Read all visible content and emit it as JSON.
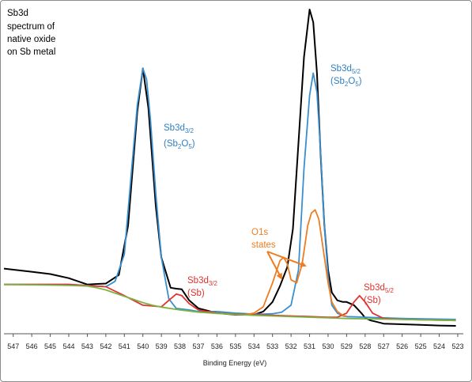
{
  "chart_data": {
    "type": "line",
    "title_lines": [
      "Sb3d",
      "spectrum of",
      "native oxide",
      "on  Sb metal"
    ],
    "xlabel": "Binding Energy (eV)",
    "ylabel": "",
    "x_reversed": true,
    "xlim": [
      547.5,
      522.7
    ],
    "ylim": [
      0,
      100
    ],
    "x_ticks": [
      "547",
      "546",
      "545",
      "544",
      "543",
      "542",
      "541",
      "540",
      "539",
      "538",
      "537",
      "536",
      "535",
      "534",
      "533",
      "532",
      "531",
      "530",
      "529",
      "528",
      "527",
      "526",
      "525",
      "524",
      "523"
    ],
    "grid": false,
    "annotations": {
      "sb3d32_ox": {
        "main": "Sb3d",
        "sub": "3/2",
        "formula": "(Sb",
        "sub2": "2",
        "mid": "O",
        "sub3": "5",
        "end": ")"
      },
      "sb3d52_ox": {
        "main": "Sb3d",
        "sub": "5/2",
        "formula": "(Sb",
        "sub2": "2",
        "mid": "O",
        "sub3": "5",
        "end": ")"
      },
      "sb3d32_m": {
        "main": "Sb3d",
        "sub": "3/2",
        "formula": "(Sb)"
      },
      "sb3d52_m": {
        "main": "Sb3d",
        "sub": "5/2",
        "formula": "(Sb)"
      },
      "o1s": {
        "line1": "O1s",
        "line2": "states"
      }
    },
    "series": [
      {
        "color": "#000000",
        "x": [
          547.5,
          546,
          545,
          544,
          543,
          542,
          541.3,
          540.8,
          540.3,
          540.0,
          539.7,
          539.3,
          539.0,
          538.5,
          538.2,
          537.9,
          537.5,
          537.0,
          536,
          535,
          534,
          533.5,
          533.0,
          532.6,
          532.2,
          531.9,
          531.6,
          531.3,
          531.0,
          530.8,
          530.6,
          530.4,
          530.2,
          530.0,
          529.8,
          529.5,
          529.2,
          529.0,
          528.6,
          528.2,
          528.0,
          527.7,
          527.4,
          527,
          526,
          525,
          524,
          523.1
        ],
        "y": [
          18.5,
          17.5,
          16.8,
          15.5,
          13.5,
          13.8,
          16.5,
          32,
          68,
          81.5,
          69,
          38,
          22,
          12.5,
          12.2,
          12,
          8.5,
          6,
          4.5,
          4.0,
          4.0,
          5.0,
          8.0,
          13,
          19,
          31,
          58,
          85,
          100,
          96,
          80,
          54,
          32,
          18,
          11,
          8.5,
          8,
          8,
          7,
          4.5,
          3,
          2.2,
          1.8,
          1.2,
          1,
          0.8,
          0.6,
          0.5
        ]
      },
      {
        "color": "#3a8fcf",
        "x": [
          547.5,
          546,
          545,
          544,
          543,
          542,
          541.5,
          541.0,
          540.6,
          540.3,
          540.0,
          539.8,
          539.6,
          539.3,
          539.0,
          538.6,
          538.2,
          537.5,
          537,
          536,
          535,
          534,
          533.5,
          533.0,
          532.5,
          532.0,
          531.6,
          531.3,
          531.0,
          530.8,
          530.6,
          530.4,
          530.2,
          530.0,
          529.8,
          529.5,
          529.2,
          529.0,
          528.5,
          528,
          527,
          526,
          524,
          523.1
        ],
        "y": [
          13.5,
          13.5,
          13.5,
          13.5,
          13.2,
          12.8,
          14.5,
          23,
          50,
          70,
          81.5,
          78,
          66,
          42,
          22,
          9,
          6,
          5.5,
          5,
          5,
          4.5,
          4.2,
          4.2,
          4.3,
          4.8,
          7,
          18,
          50,
          73,
          80,
          74,
          55,
          32,
          16,
          7,
          4.5,
          3.6,
          3.4,
          3.3,
          3.2,
          3.0,
          2.8,
          2.6,
          2.5
        ]
      },
      {
        "color": "#e0322e",
        "x": [
          547.5,
          544,
          542,
          541.0,
          540.0,
          539.0,
          538.5,
          538.2,
          537.9,
          537.5,
          537.0,
          536,
          535,
          534,
          533,
          532,
          531,
          530,
          529.5,
          529.0,
          528.6,
          528.3,
          528.0,
          527.6,
          527,
          526,
          524,
          523.1
        ],
        "y": [
          13.5,
          13.5,
          12.8,
          10,
          7,
          6.5,
          9,
          10.5,
          10,
          7.5,
          5.5,
          4.5,
          4.2,
          4,
          3.8,
          3.6,
          3.4,
          3.2,
          3.2,
          4.5,
          8,
          10,
          8,
          4.5,
          2.8,
          2.5,
          2.3,
          2.2
        ]
      },
      {
        "color": "#ee7d22",
        "x": [
          534.5,
          534,
          533.5,
          533.0,
          532.6,
          532.4,
          532.2,
          532.0,
          531.7,
          531.4,
          531.1,
          530.9,
          530.7,
          530.5,
          530.3,
          530.0,
          529.8,
          529.5,
          529.2,
          529.0
        ],
        "y": [
          4,
          4.5,
          6.5,
          14,
          21,
          22,
          20,
          15,
          14,
          20,
          32,
          36,
          37,
          34,
          26,
          14,
          8,
          5,
          3.8,
          3.5
        ]
      },
      {
        "color": "#7cb342",
        "x": [
          547.5,
          545,
          544,
          543,
          542.5,
          542,
          541.5,
          541,
          540.5,
          540,
          539.5,
          539,
          538,
          537,
          536,
          535,
          534,
          533,
          532,
          531,
          530,
          529,
          528,
          527,
          526,
          525,
          524,
          523.1
        ],
        "y": [
          13.5,
          13.3,
          13.2,
          13,
          12.5,
          11.8,
          10.8,
          9.8,
          8.8,
          7.8,
          7.0,
          6.4,
          5.5,
          4.8,
          4.4,
          4.1,
          3.8,
          3.6,
          3.4,
          3.2,
          3.0,
          2.8,
          2.7,
          2.6,
          2.5,
          2.4,
          2.3,
          2.2
        ]
      }
    ]
  }
}
